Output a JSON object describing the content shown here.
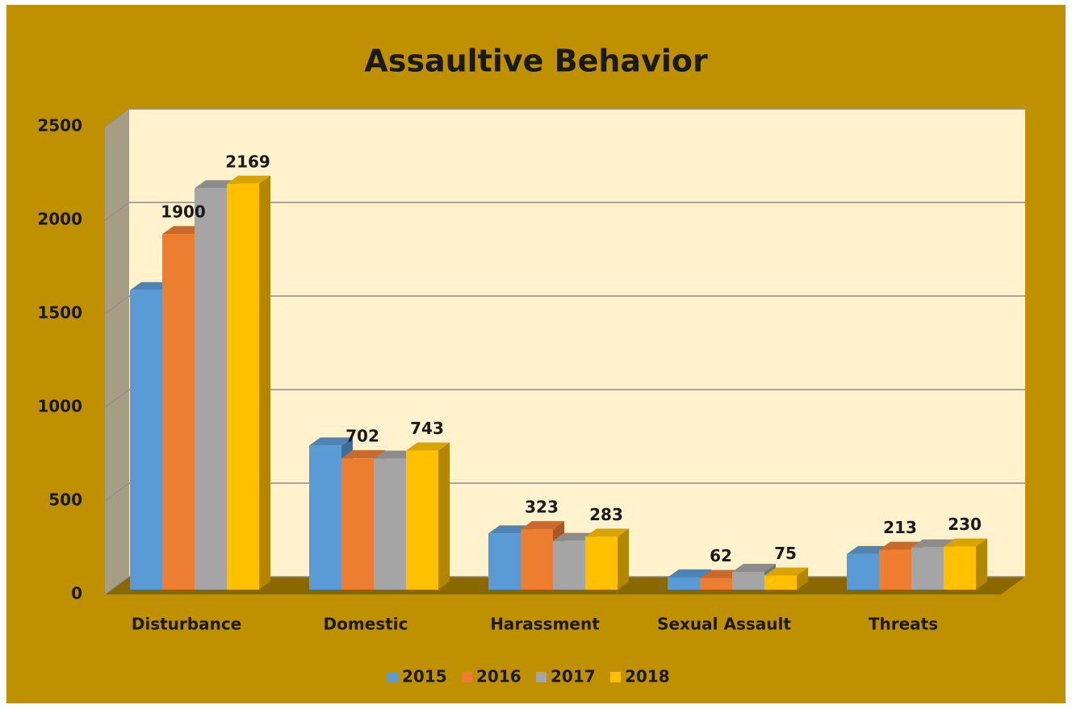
{
  "chart_data": {
    "type": "bar3d",
    "title": "Assaultive Behavior",
    "categories": [
      "Disturbance",
      "Domestic",
      "Harassment",
      "Sexual Assault",
      "Threats"
    ],
    "series": [
      {
        "name": "2015",
        "color": "#5B9BD5",
        "values": [
          1600,
          770,
          300,
          65,
          190
        ],
        "show_labels": false
      },
      {
        "name": "2016",
        "color": "#ED7D31",
        "values": [
          1900,
          702,
          323,
          62,
          213
        ],
        "show_labels": true
      },
      {
        "name": "2017",
        "color": "#A5A5A5",
        "values": [
          2145,
          700,
          260,
          95,
          225
        ],
        "show_labels": false
      },
      {
        "name": "2018",
        "color": "#FFC000",
        "values": [
          2169,
          743,
          283,
          75,
          230
        ],
        "show_labels": true
      }
    ],
    "ylim": [
      0,
      2500
    ],
    "yticks": [
      0,
      500,
      1000,
      1500,
      2000,
      2500
    ],
    "grid": true,
    "legend": "bottom"
  }
}
